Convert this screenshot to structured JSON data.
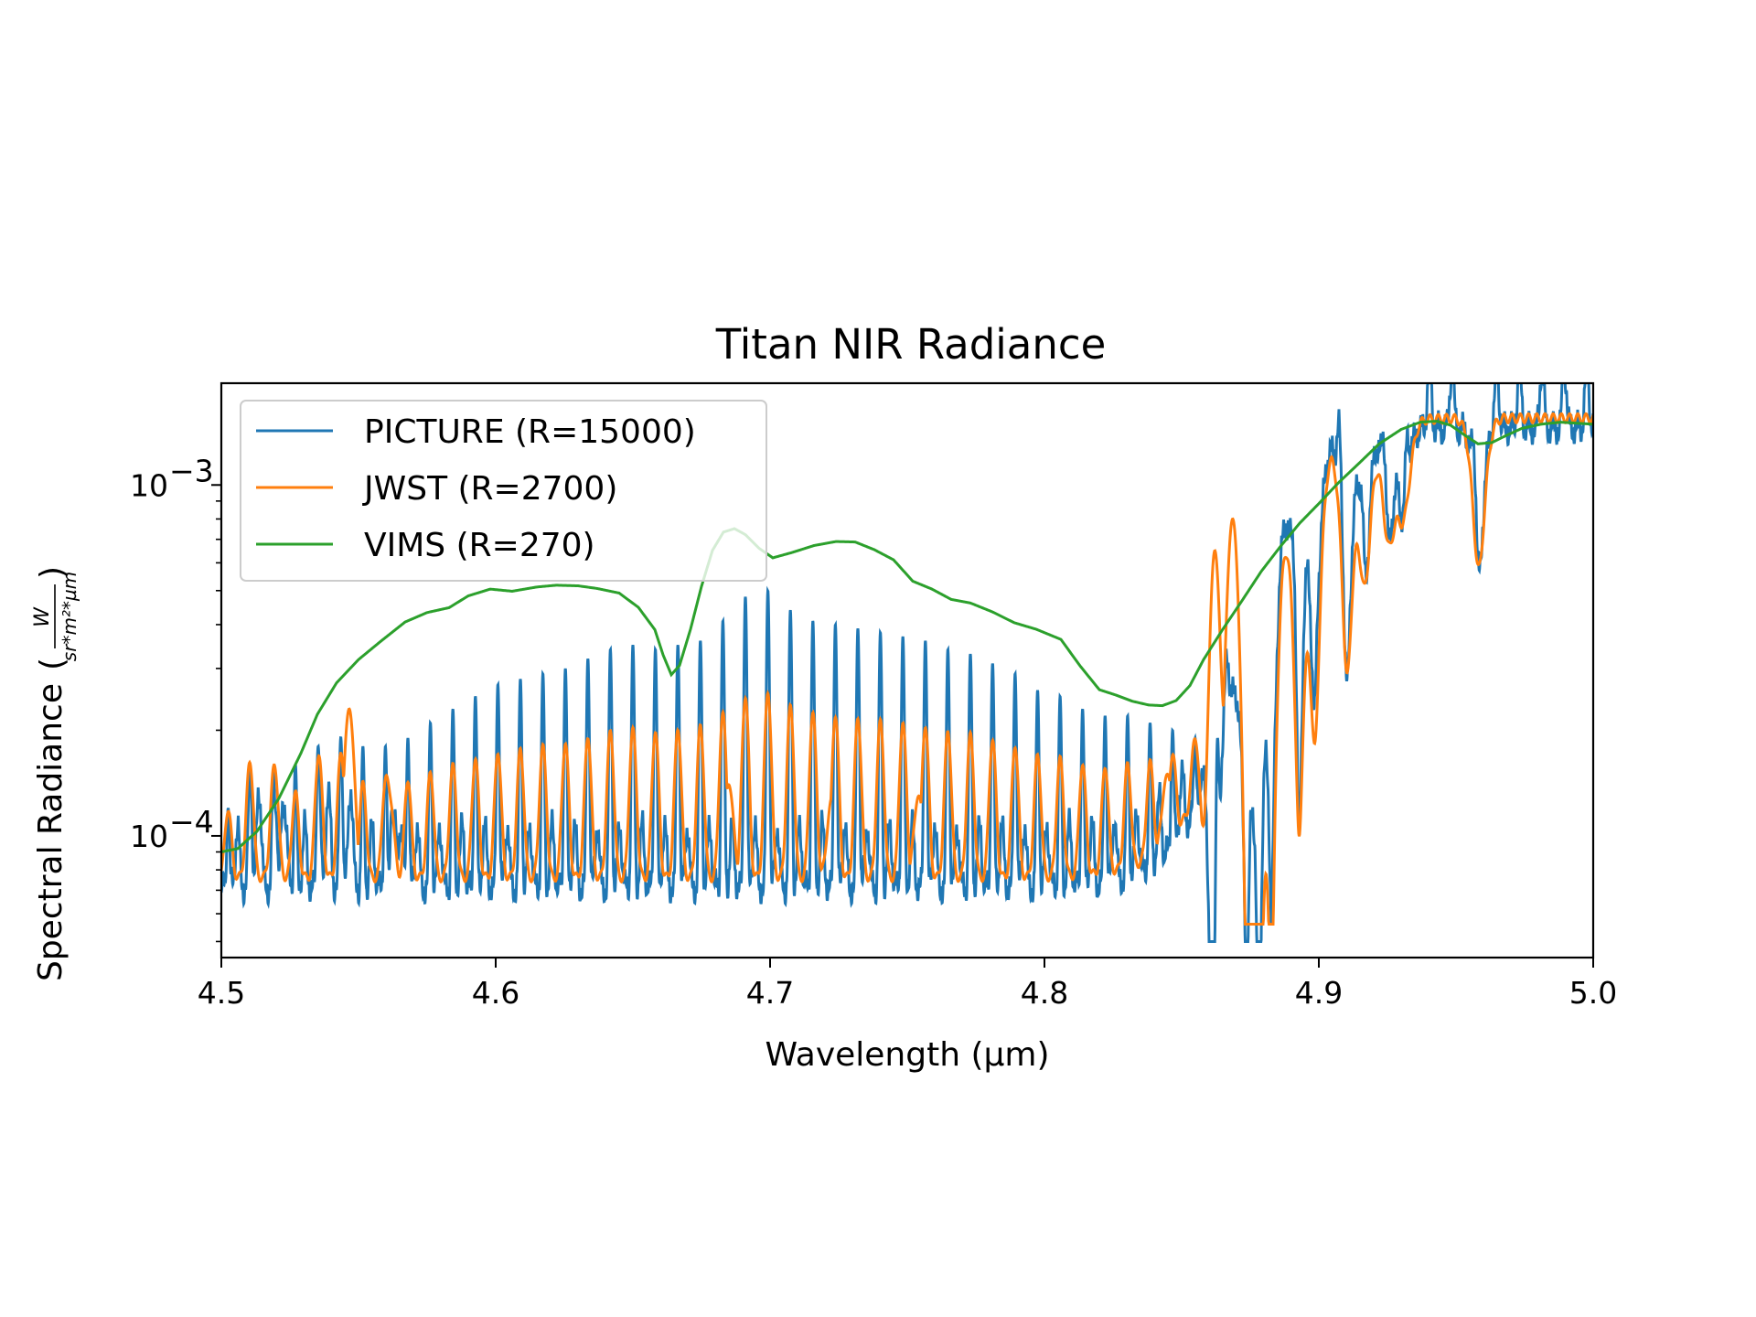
{
  "chart_data": {
    "type": "line",
    "title": "Titan NIR Radiance",
    "xlabel": "Wavelength (µm)",
    "ylabel": "Spectral Radiance",
    "ylabel_unit": {
      "open": "(",
      "numerator": "W",
      "denominator": "sr*m²*µm",
      "close": ")"
    },
    "xlim": [
      4.5,
      5.0
    ],
    "ylim": [
      4.5e-05,
      0.00195
    ],
    "yscale": "log",
    "x_ticks": [
      4.5,
      4.6,
      4.7,
      4.8,
      4.9,
      5.0
    ],
    "x_tick_labels": [
      "4.5",
      "4.6",
      "4.7",
      "4.8",
      "4.9",
      "5.0"
    ],
    "y_ticks": [
      0.0001,
      0.001
    ],
    "y_tick_labels": [
      {
        "base": "10",
        "exp": "−4"
      },
      {
        "base": "10",
        "exp": "−3"
      }
    ],
    "grid": false,
    "legend_position": "upper-left",
    "series": [
      {
        "name": "PICTURE (R=15000)",
        "color": "#1f77b4",
        "line_count": 66,
        "line_centers": [
          4.5025,
          4.5107,
          4.5189,
          4.527,
          4.5352,
          4.5434,
          4.5516,
          4.5598,
          4.568,
          4.5762,
          4.5844,
          4.5926,
          4.6008,
          4.609,
          4.6172,
          4.6254,
          4.6336,
          4.6418,
          4.65,
          4.6582,
          4.6664,
          4.6746,
          4.6828,
          4.691,
          4.6992,
          4.7074,
          4.7156,
          4.7238,
          4.732,
          4.7402,
          4.7484,
          4.7566,
          4.7648,
          4.773,
          4.7811,
          4.7893,
          4.7975,
          4.8057,
          4.8139,
          4.8221,
          4.8303,
          4.8385,
          4.8467,
          4.8549,
          4.8631,
          4.8713,
          4.8795,
          4.8877,
          4.8959,
          4.9041,
          4.9123,
          4.9205,
          4.9287,
          4.9369,
          4.9451,
          4.9533,
          4.9615,
          4.9697,
          4.9779,
          4.9861,
          4.9943,
          4.52,
          4.51,
          4.536,
          4.544,
          4.562
        ],
        "line_peaks": [
          0.00012,
          0.00014,
          0.00015,
          0.00016,
          0.00017,
          0.00017,
          0.00018,
          0.00018,
          0.00019,
          0.00021,
          0.00023,
          0.00025,
          0.00027,
          0.00028,
          0.00029,
          0.0003,
          0.00032,
          0.00034,
          0.00035,
          0.00034,
          0.00035,
          0.00036,
          0.00041,
          0.00048,
          0.0005,
          0.00044,
          0.00041,
          0.0004,
          0.00039,
          0.00038,
          0.00037,
          0.00036,
          0.00034,
          0.00033,
          0.00031,
          0.00029,
          0.00026,
          0.00025,
          0.00023,
          0.00022,
          0.00022,
          0.00021,
          0.0002,
          0.00019,
          0.00019,
          0.00018,
          0.00018,
          0.00017,
          0.00016,
          0.00016,
          0.00015,
          0.00015,
          0.00014,
          0.00014,
          0.00014,
          0.00013,
          0.00013,
          0.00013,
          0.00013,
          0.00012,
          0.00012,
          0.00011,
          0.00011,
          0.00011,
          0.00011,
          0.00011
        ],
        "baseline": 7.4e-05,
        "dips": [
          {
            "x": 4.8613,
            "depth": 0.00017
          },
          {
            "x": 4.8739,
            "depth": 0.00013
          },
          {
            "x": 4.8782,
            "depth": 6e-05
          },
          {
            "x": 4.8828,
            "depth": 0.0001
          },
          {
            "x": 4.8928,
            "depth": 0.00015
          },
          {
            "x": 4.8986,
            "depth": 0.00024
          },
          {
            "x": 4.9103,
            "depth": 0.00031
          },
          {
            "x": 4.9168,
            "depth": 0.00054
          },
          {
            "x": 4.9254,
            "depth": 0.0007
          },
          {
            "x": 4.9309,
            "depth": 0.00082
          },
          {
            "x": 4.9583,
            "depth": 0.00056
          }
        ]
      },
      {
        "name": "JWST (R=2700)",
        "color": "#ff7f0e",
        "baseline": 7.6e-05,
        "peaks": [
          {
            "x": 4.5466,
            "y": 0.00023
          },
          {
            "x": 4.6849,
            "y": 0.00014
          },
          {
            "x": 4.7227,
            "y": 0.00013
          },
          {
            "x": 4.7542,
            "y": 0.00013
          },
          {
            "x": 4.8448,
            "y": 0.00015
          },
          {
            "x": 4.8621,
            "y": 0.00065
          },
          {
            "x": 4.8686,
            "y": 0.0008
          }
        ]
      },
      {
        "name": "VIMS (R=270)",
        "color": "#2ca02c",
        "x": [
          4.5,
          4.506,
          4.513,
          4.521,
          4.529,
          4.535,
          4.542,
          4.55,
          4.558,
          4.567,
          4.575,
          4.583,
          4.59,
          4.598,
          4.606,
          4.615,
          4.622,
          4.63,
          4.637,
          4.645,
          4.652,
          4.658,
          4.661,
          4.664,
          4.667,
          4.671,
          4.675,
          4.679,
          4.683,
          4.687,
          4.691,
          4.696,
          4.701,
          4.708,
          4.716,
          4.724,
          4.731,
          4.738,
          4.745,
          4.752,
          4.759,
          4.766,
          4.773,
          4.781,
          4.789,
          4.797,
          4.806,
          4.813,
          4.82,
          4.826,
          4.832,
          4.838,
          4.843,
          4.848,
          4.853,
          4.858,
          4.865,
          4.872,
          4.879,
          4.886,
          4.893,
          4.9,
          4.907,
          4.915,
          4.922,
          4.93,
          4.937,
          4.943,
          4.948,
          4.953,
          4.958,
          4.963,
          4.968,
          4.974,
          4.981,
          4.988,
          4.994,
          5.0
        ],
        "y": [
          9e-05,
          9.2e-05,
          0.000103,
          0.000128,
          0.000172,
          0.000222,
          0.000273,
          0.000318,
          0.000358,
          0.000407,
          0.000433,
          0.000447,
          0.000483,
          0.000505,
          0.000498,
          0.000512,
          0.000518,
          0.000516,
          0.000507,
          0.000492,
          0.000448,
          0.000387,
          0.000328,
          0.000288,
          0.000306,
          0.000388,
          0.000514,
          0.000651,
          0.000734,
          0.000751,
          0.000722,
          0.00066,
          0.00062,
          0.000642,
          0.000672,
          0.00069,
          0.000688,
          0.000654,
          0.000612,
          0.000532,
          0.000505,
          0.000472,
          0.000461,
          0.000435,
          0.000405,
          0.000388,
          0.000363,
          0.000305,
          0.000261,
          0.000252,
          0.000242,
          0.000236,
          0.000235,
          0.000243,
          0.000268,
          0.000318,
          0.000388,
          0.000468,
          0.000567,
          0.000668,
          0.000778,
          0.000885,
          0.001012,
          0.00116,
          0.00131,
          0.00144,
          0.00151,
          0.00152,
          0.00148,
          0.00139,
          0.00131,
          0.00132,
          0.00138,
          0.00145,
          0.00149,
          0.00151,
          0.0015,
          0.00149
        ]
      }
    ]
  }
}
